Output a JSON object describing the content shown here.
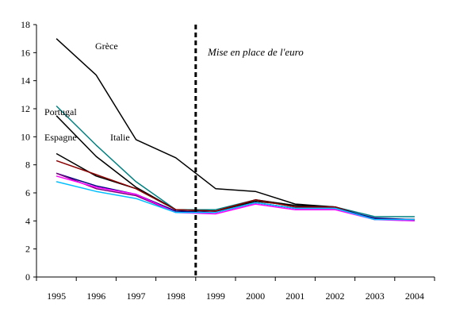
{
  "chart_data": {
    "type": "line",
    "title": "",
    "xlabel": "",
    "ylabel": "",
    "x": [
      1995,
      1996,
      1997,
      1998,
      1999,
      2000,
      2001,
      2002,
      2003,
      2004
    ],
    "ylim": [
      0,
      18
    ],
    "yticks": [
      0,
      2,
      4,
      6,
      8,
      10,
      12,
      14,
      16,
      18
    ],
    "grid": false,
    "legend": "none",
    "annotations": [
      {
        "text": "Mise en place de l'euro",
        "style": "italic",
        "marker": "dashed-vertical-line-between-1998-and-1999"
      }
    ],
    "series": [
      {
        "name": "Grèce",
        "color": "#000000",
        "values": [
          17.0,
          14.4,
          9.8,
          8.5,
          6.3,
          6.1,
          5.2,
          5.0,
          4.1,
          4.1
        ]
      },
      {
        "name": "Portugal",
        "color": "#008080",
        "values": [
          12.2,
          9.4,
          6.8,
          4.8,
          4.8,
          5.5,
          5.1,
          5.0,
          4.3,
          4.3
        ]
      },
      {
        "name": "",
        "color": "#000000",
        "values": [
          11.5,
          8.6,
          6.4,
          4.8,
          4.7,
          5.4,
          5.1,
          5.0,
          4.1,
          4.1
        ]
      },
      {
        "name": "Espagne",
        "color": "#000000",
        "values": [
          8.8,
          7.2,
          6.3,
          4.8,
          4.7,
          5.5,
          5.1,
          5.0,
          4.1,
          4.1
        ]
      },
      {
        "name": "",
        "color": "#8B0000",
        "values": [
          8.3,
          7.3,
          6.3,
          4.8,
          4.7,
          5.5,
          5.0,
          5.0,
          4.1,
          4.1
        ]
      },
      {
        "name": "",
        "color": "#000080",
        "values": [
          7.4,
          6.5,
          5.9,
          4.7,
          4.6,
          5.3,
          4.9,
          4.9,
          4.2,
          4.1
        ]
      },
      {
        "name": "",
        "color": "#800080",
        "values": [
          7.4,
          6.3,
          5.8,
          4.6,
          4.6,
          5.3,
          4.9,
          4.9,
          4.1,
          4.1
        ]
      },
      {
        "name": "",
        "color": "#FF00FF",
        "values": [
          7.2,
          6.4,
          5.9,
          4.6,
          4.5,
          5.2,
          4.8,
          4.8,
          4.1,
          4.0
        ]
      },
      {
        "name": "",
        "color": "#00BFFF",
        "values": [
          6.8,
          6.1,
          5.6,
          4.6,
          4.6,
          5.3,
          4.9,
          4.9,
          4.1,
          4.1
        ]
      }
    ],
    "labels": [
      {
        "text": "Grèce",
        "series": 0
      },
      {
        "text": "Portugal",
        "series": 1
      },
      {
        "text": "Italie",
        "series": 2
      },
      {
        "text": "Espagne",
        "series": 3
      }
    ]
  }
}
